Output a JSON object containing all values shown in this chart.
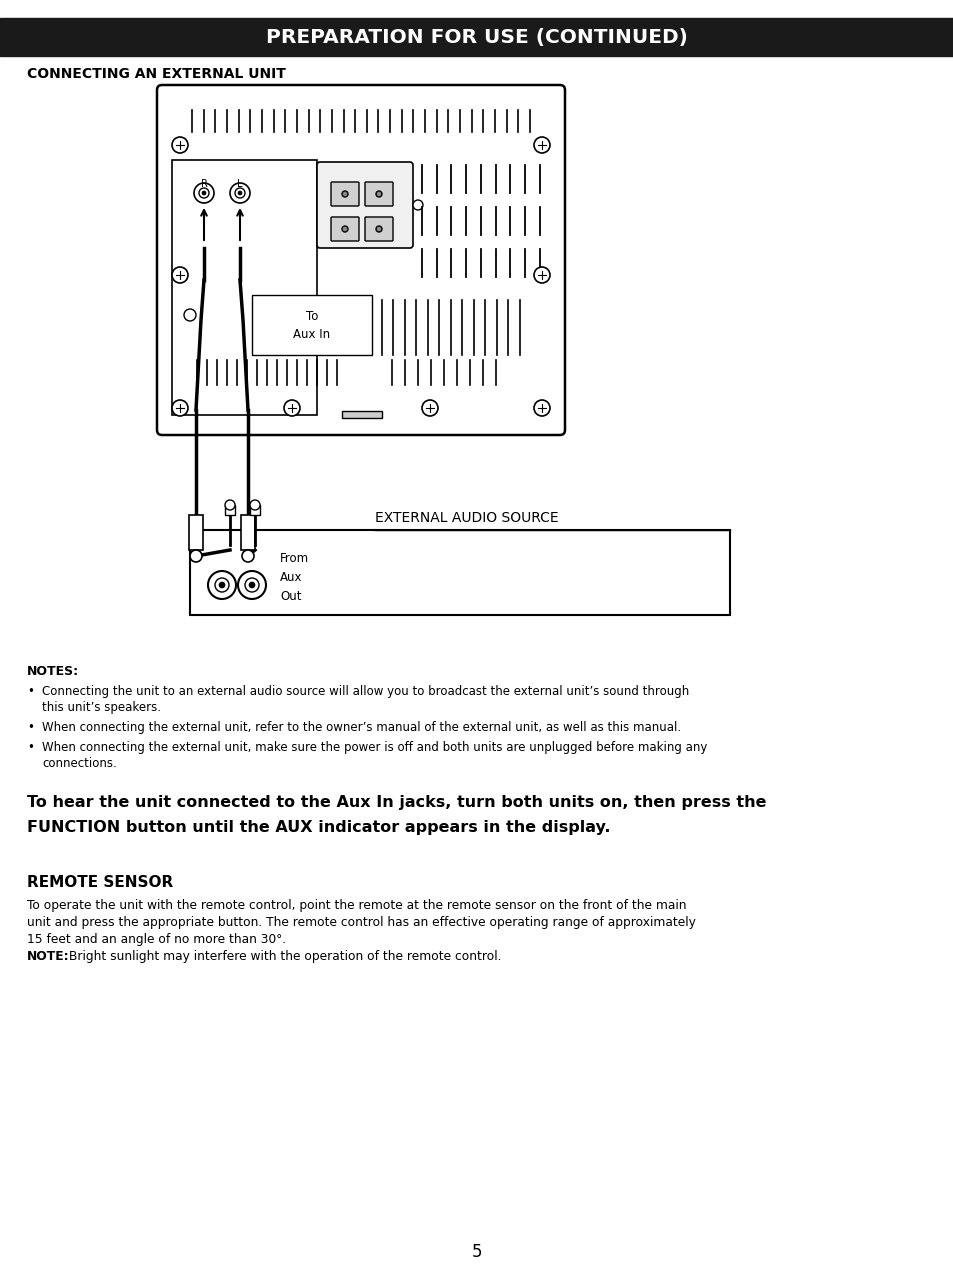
{
  "title": "PREPARATION FOR USE (CONTINUED)",
  "title_bg": "#1a1a1a",
  "title_color": "#ffffff",
  "section1_heading": "CONNECTING AN EXTERNAL UNIT",
  "notes_heading": "NOTES:",
  "note1_line1": "Connecting the unit to an external audio source will allow you to broadcast the external unit’s sound through",
  "note1_line2": "this unit’s speakers.",
  "note2": "When connecting the external unit, refer to the owner’s manual of the external unit, as well as this manual.",
  "note3_line1": "When connecting the external unit, make sure the power is off and both units are unplugged before making any",
  "note3_line2": "connections.",
  "bold_line1": "To hear the unit connected to the Aux In jacks, turn both units on, then press the",
  "bold_line2": "FUNCTION button until the AUX indicator appears in the display.",
  "remote_heading": "REMOTE SENSOR",
  "remote_line1": "To operate the unit with the remote control, point the remote at the remote sensor on the front of the main",
  "remote_line2": "unit and press the appropriate button. The remote control has an effective operating range of approximately",
  "remote_line3": "15 feet and an angle of no more than 30°.",
  "remote_note_bold": "NOTE:",
  "remote_note_rest": " Bright sunlight may interfere with the operation of the remote control.",
  "page_number": "5",
  "external_audio_label": "EXTERNAL AUDIO SOURCE",
  "to_aux_label": "To\nAux In",
  "from_aux_label": "From\nAux\nOut"
}
